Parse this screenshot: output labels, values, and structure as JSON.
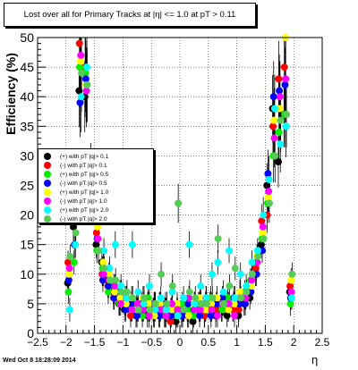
{
  "chart_data": {
    "type": "scatter",
    "title": "Lost over all for Primary Tracks at |η| <= 1.0 at pT > 0.11",
    "xlabel": "η",
    "ylabel": "Efficiency (%)",
    "xlim": [
      -2.5,
      2.5
    ],
    "ylim": [
      0,
      50
    ],
    "xticks": [
      "−2.5",
      "−2",
      "−1.5",
      "−1",
      "−0.5",
      "0",
      "0.5",
      "1",
      "1.5",
      "2",
      "2.5"
    ],
    "yticks": [
      "0",
      "5",
      "10",
      "15",
      "20",
      "25",
      "30",
      "35",
      "40",
      "45",
      "50"
    ],
    "grid": true,
    "legend_position": "left",
    "series": [
      {
        "name": "(+) with pT |q|> 0.1",
        "color": "#000000",
        "x": [
          -1.95,
          -1.85,
          -1.75,
          -1.65,
          -1.55,
          -1.45,
          -1.35,
          -1.25,
          -1.15,
          -1.05,
          -0.95,
          -0.85,
          -0.75,
          -0.65,
          -0.55,
          -0.45,
          -0.35,
          -0.25,
          -0.15,
          -0.05,
          0.05,
          0.15,
          0.25,
          0.35,
          0.45,
          0.55,
          0.65,
          0.75,
          0.85,
          0.95,
          1.05,
          1.15,
          1.25,
          1.35,
          1.45,
          1.55,
          1.65,
          1.75,
          1.85,
          1.95
        ],
        "y": [
          8.5,
          18,
          41,
          40,
          22,
          15,
          12,
          9,
          7,
          5,
          4,
          4,
          3,
          5,
          3,
          4,
          3,
          3,
          3,
          2,
          3,
          4,
          2,
          5,
          3,
          5,
          3,
          4,
          3,
          4,
          3,
          5,
          6,
          10,
          15,
          25,
          38,
          29,
          37,
          7
        ]
      },
      {
        "name": "(-) with pT |q|> 0.1",
        "color": "#ff0000",
        "x": [
          -1.95,
          -1.85,
          -1.75,
          -1.65,
          -1.55,
          -1.45,
          -1.35,
          -1.25,
          -1.15,
          -1.05,
          -0.95,
          -0.85,
          -0.75,
          -0.65,
          -0.55,
          -0.45,
          -0.35,
          -0.25,
          -0.15,
          -0.05,
          0.05,
          0.15,
          0.25,
          0.35,
          0.45,
          0.55,
          0.65,
          0.75,
          0.85,
          0.95,
          1.05,
          1.15,
          1.25,
          1.35,
          1.45,
          1.55,
          1.65,
          1.75,
          1.85,
          1.95
        ],
        "y": [
          12,
          25,
          49,
          45,
          28,
          17,
          10,
          8,
          6,
          6,
          5,
          3,
          4,
          4,
          5,
          3,
          4,
          4,
          2,
          3,
          4,
          3,
          3,
          4,
          3,
          4,
          4,
          5,
          5,
          4,
          4,
          6,
          8,
          11,
          19,
          20,
          35,
          43,
          45,
          8
        ]
      },
      {
        "name": "(+) with pT |q|> 0.5",
        "color": "#00ee00",
        "x": [
          -1.95,
          -1.85,
          -1.75,
          -1.65,
          -1.55,
          -1.45,
          -1.35,
          -1.25,
          -1.15,
          -1.05,
          -0.95,
          -0.85,
          -0.75,
          -0.65,
          -0.55,
          -0.45,
          -0.35,
          -0.25,
          -0.15,
          -0.05,
          0.05,
          0.15,
          0.25,
          0.35,
          0.45,
          0.55,
          0.65,
          0.75,
          0.85,
          0.95,
          1.05,
          1.15,
          1.25,
          1.35,
          1.45,
          1.55,
          1.65,
          1.75,
          1.85,
          1.95
        ],
        "y": [
          7,
          12,
          45,
          44,
          26,
          14,
          11,
          7,
          8,
          5,
          6,
          4,
          5,
          3,
          6,
          4,
          5,
          3,
          4,
          3,
          5,
          4,
          3,
          5,
          4,
          6,
          5,
          4,
          6,
          5,
          5,
          7,
          9,
          12,
          16,
          22,
          30,
          34,
          37,
          5
        ]
      },
      {
        "name": "(-) with pT |q|> 0.5",
        "color": "#0000ff",
        "x": [
          -1.95,
          -1.85,
          -1.75,
          -1.65,
          -1.55,
          -1.45,
          -1.35,
          -1.25,
          -1.15,
          -1.05,
          -0.95,
          -0.85,
          -0.75,
          -0.65,
          -0.55,
          -0.45,
          -0.35,
          -0.25,
          -0.15,
          -0.05,
          0.05,
          0.15,
          0.25,
          0.35,
          0.45,
          0.55,
          0.65,
          0.75,
          0.85,
          0.95,
          1.05,
          1.15,
          1.25,
          1.35,
          1.45,
          1.55,
          1.65,
          1.75,
          1.85,
          1.95
        ],
        "y": [
          9,
          15,
          39,
          43,
          24,
          16,
          9,
          8,
          6,
          7,
          4,
          5,
          3,
          4,
          4,
          5,
          3,
          5,
          3,
          4,
          3,
          5,
          4,
          3,
          5,
          3,
          5,
          6,
          4,
          6,
          5,
          5,
          7,
          10,
          14,
          27,
          40,
          41,
          42,
          6
        ]
      },
      {
        "name": "(+) with pT |q|> 1.0",
        "color": "#ffff00",
        "x": [
          -1.95,
          -1.85,
          -1.75,
          -1.65,
          -1.55,
          -1.45,
          -1.35,
          -1.25,
          -1.15,
          -1.05,
          -0.95,
          -0.85,
          -0.75,
          -0.65,
          -0.55,
          -0.45,
          -0.35,
          -0.25,
          -0.15,
          -0.05,
          0.05,
          0.15,
          0.25,
          0.35,
          0.45,
          0.55,
          0.65,
          0.75,
          0.85,
          0.95,
          1.05,
          1.15,
          1.25,
          1.35,
          1.45,
          1.55,
          1.65,
          1.75,
          1.85,
          1.95
        ],
        "y": [
          10,
          20,
          46,
          42,
          25,
          18,
          12,
          10,
          7,
          6,
          5,
          6,
          4,
          6,
          5,
          3,
          5,
          4,
          4,
          5,
          4,
          3,
          5,
          6,
          4,
          5,
          6,
          5,
          4,
          5,
          7,
          6,
          8,
          13,
          17,
          23,
          36,
          38,
          50,
          9
        ]
      },
      {
        "name": "(-) with pT |q|> 1.0",
        "color": "#ff00ff",
        "x": [
          -1.95,
          -1.85,
          -1.75,
          -1.65,
          -1.55,
          -1.45,
          -1.35,
          -1.25,
          -1.15,
          -1.05,
          -0.95,
          -0.85,
          -0.75,
          -0.65,
          -0.55,
          -0.45,
          -0.35,
          -0.25,
          -0.15,
          -0.05,
          0.05,
          0.15,
          0.25,
          0.35,
          0.45,
          0.55,
          0.65,
          0.75,
          0.85,
          0.95,
          1.05,
          1.15,
          1.25,
          1.35,
          1.45,
          1.55,
          1.65,
          1.75,
          1.85,
          1.95
        ],
        "y": [
          11,
          22,
          47,
          41,
          27,
          16,
          10,
          9,
          8,
          5,
          6,
          4,
          5,
          4,
          3,
          5,
          4,
          3,
          5,
          4,
          4,
          6,
          4,
          4,
          6,
          4,
          3,
          5,
          5,
          3,
          6,
          6,
          9,
          12,
          18,
          24,
          33,
          40,
          43,
          7
        ]
      },
      {
        "name": "(+) with pT |q|> 2.0",
        "color": "#00ffff",
        "x": [
          -1.95,
          -1.85,
          -1.75,
          -1.65,
          -1.55,
          -1.45,
          -1.35,
          -1.25,
          -1.15,
          -1.05,
          -0.95,
          -0.85,
          -0.75,
          -0.65,
          -0.55,
          -0.45,
          -0.35,
          -0.25,
          -0.15,
          -0.05,
          0.05,
          0.15,
          0.25,
          0.35,
          0.45,
          0.55,
          0.65,
          0.75,
          0.85,
          0.95,
          1.05,
          1.15,
          1.25,
          1.35,
          1.45,
          1.55,
          1.65,
          1.75,
          1.85,
          1.95
        ],
        "y": [
          4,
          15,
          40,
          45,
          24,
          19,
          14,
          11,
          15,
          8,
          6,
          15,
          7,
          5,
          8,
          4,
          6,
          4,
          7,
          3,
          6,
          15,
          5,
          8,
          6,
          10,
          12,
          7,
          14,
          6,
          10,
          8,
          12,
          14,
          20,
          26,
          38,
          32,
          35,
          6
        ]
      },
      {
        "name": "(-) with pT |q|> 2.0",
        "color": "#55cc55",
        "x": [
          -1.95,
          -1.85,
          -1.75,
          -1.65,
          -1.55,
          -1.45,
          -1.35,
          -1.25,
          -1.15,
          -1.05,
          -0.95,
          -0.85,
          -0.75,
          -0.65,
          -0.55,
          -0.45,
          -0.35,
          -0.25,
          -0.15,
          -0.05,
          0.05,
          0.15,
          0.25,
          0.35,
          0.45,
          0.55,
          0.65,
          0.75,
          0.85,
          0.95,
          1.05,
          1.15,
          1.25,
          1.35,
          1.45,
          1.55,
          1.65,
          1.75,
          1.85,
          1.95
        ],
        "y": [
          13,
          17,
          44,
          42,
          23,
          14,
          11,
          9,
          9,
          7,
          7,
          6,
          4,
          6,
          4,
          5,
          10,
          5,
          8,
          22,
          4,
          7,
          6,
          5,
          5,
          6,
          16,
          5,
          8,
          11,
          6,
          7,
          10,
          13,
          16,
          22,
          30,
          36,
          37,
          10
        ]
      }
    ]
  },
  "footer": {
    "timestamp": "Wed Oct  8 18:28:09 2014"
  }
}
